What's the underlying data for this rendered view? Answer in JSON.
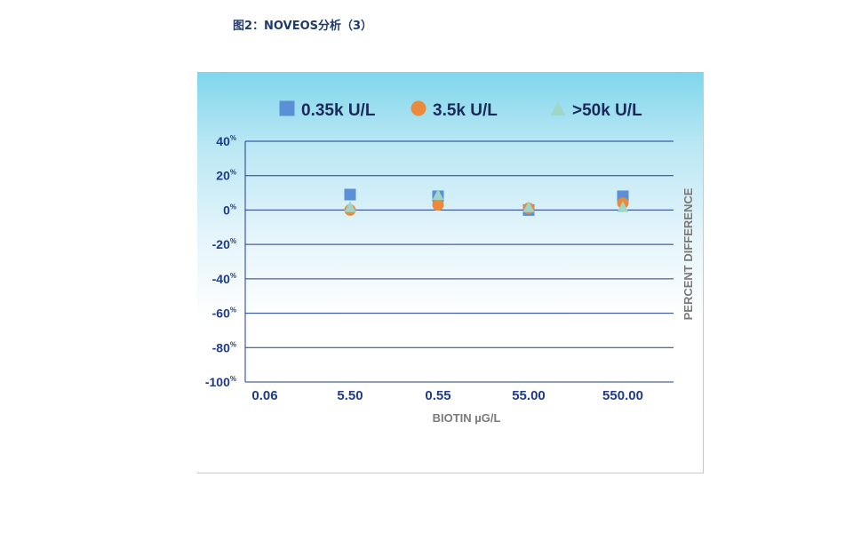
{
  "caption": "图2：NOVEOS分析（3）",
  "chart_data": {
    "type": "scatter",
    "categories": [
      "0.06",
      "5.50",
      "0.55",
      "55.00",
      "550.00"
    ],
    "xlabel": "BIOTIN µG/L",
    "ylabel": "PERCENT DIFFERENCE",
    "ylim": [
      -100,
      40
    ],
    "yticks": [
      40,
      20,
      0,
      -20,
      -40,
      -60,
      -80,
      -100
    ],
    "ytick_suffix": "%",
    "grid": true,
    "legend_position": "top",
    "series": [
      {
        "name": "0.35k U/L",
        "marker": "square",
        "color": "#5b8fd6",
        "values": [
          null,
          9,
          8,
          0,
          8
        ]
      },
      {
        "name": "3.5k U/L",
        "marker": "circle",
        "color": "#ec8a3c",
        "values": [
          null,
          0,
          3,
          1,
          4
        ]
      },
      {
        "name": ">50k U/L",
        "marker": "triangle",
        "color": "#9fd6c8",
        "values": [
          null,
          2,
          9,
          2,
          2
        ]
      }
    ],
    "colors": {
      "gridline": "#1f3b8c",
      "tick_label": "#1f3b8c",
      "axis_title": "#7a7a7a"
    }
  }
}
